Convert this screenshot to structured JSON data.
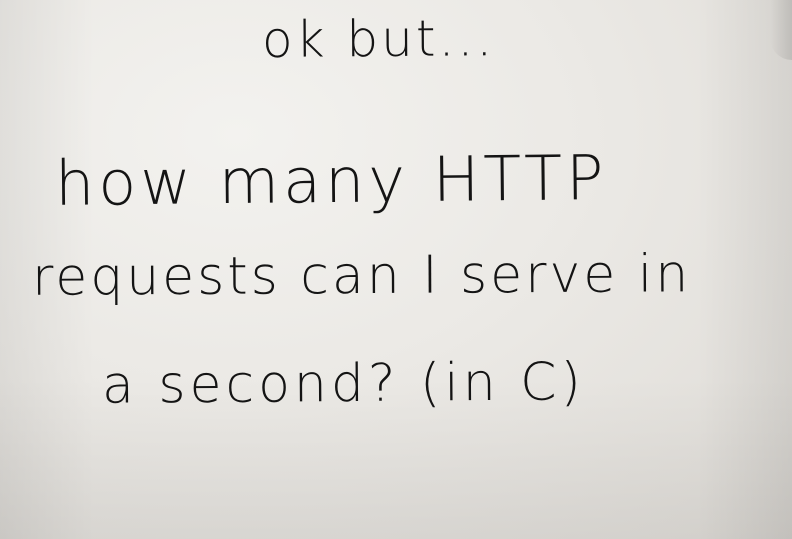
{
  "note": {
    "top_line": "ok but...",
    "question_lines": [
      "how many HTTP",
      "requests can I serve in",
      "a second? (in C)"
    ]
  },
  "colors": {
    "paper": "#ebe9e5",
    "ink": "#141414"
  }
}
